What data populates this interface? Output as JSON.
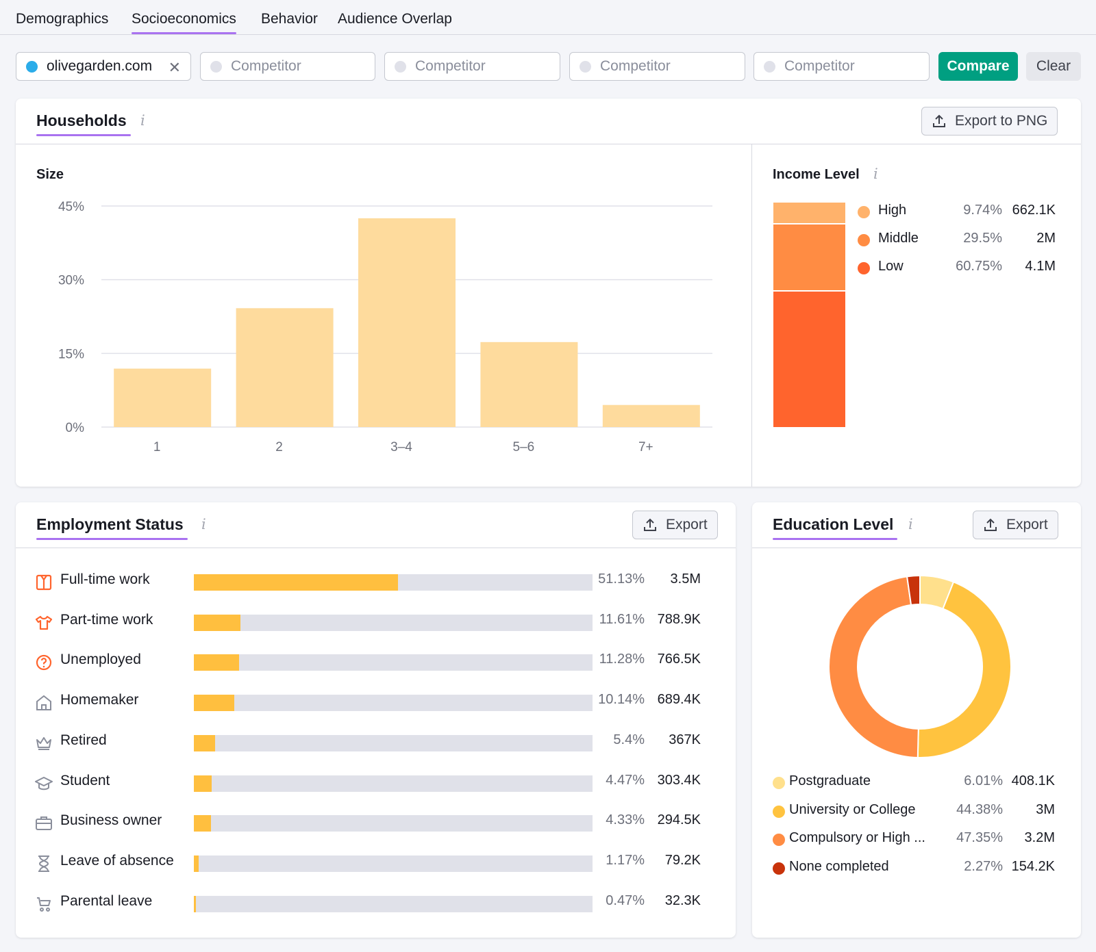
{
  "tabs": [
    {
      "label": "Demographics"
    },
    {
      "label": "Socioeconomics",
      "active": true
    },
    {
      "label": "Behavior"
    },
    {
      "label": "Audience Overlap"
    }
  ],
  "filters": {
    "domain": "olivegarden.com",
    "competitor_placeholder": "Competitor",
    "compare_label": "Compare",
    "clear_label": "Clear",
    "domain_dot_color": "#2bace9"
  },
  "households": {
    "title": "Households",
    "export_label": "Export to PNG",
    "size": {
      "title": "Size",
      "chart_data": {
        "type": "bar",
        "categories": [
          "1",
          "2",
          "3–4",
          "5–6",
          "7+"
        ],
        "values": [
          11.9,
          24.2,
          42.5,
          17.3,
          4.5
        ],
        "ylim": [
          0,
          45
        ],
        "yticks": [
          "45%",
          "30%",
          "15%",
          "0%"
        ],
        "ytick_values": [
          45,
          30,
          15,
          0
        ],
        "color": "#fedb9d"
      }
    },
    "income": {
      "title": "Income Level",
      "items": [
        {
          "label": "High",
          "pct": "9.74%",
          "value": "662.1K",
          "share": 9.74,
          "color": "#ffb26b"
        },
        {
          "label": "Middle",
          "pct": "29.5%",
          "value": "2M",
          "share": 29.5,
          "color": "#ff8c43"
        },
        {
          "label": "Low",
          "pct": "60.75%",
          "value": "4.1M",
          "share": 60.75,
          "color": "#ff642d"
        }
      ]
    }
  },
  "employment": {
    "title": "Employment Status",
    "export_label": "Export",
    "items": [
      {
        "label": "Full-time work",
        "pct": "51.13%",
        "value": "3.5M",
        "share": 51.13,
        "icon": "shirt-icon"
      },
      {
        "label": "Part-time work",
        "pct": "11.61%",
        "value": "788.9K",
        "share": 11.61,
        "icon": "tshirt-icon"
      },
      {
        "label": "Unemployed",
        "pct": "11.28%",
        "value": "766.5K",
        "share": 11.28,
        "icon": "question-circle-icon"
      },
      {
        "label": "Homemaker",
        "pct": "10.14%",
        "value": "689.4K",
        "share": 10.14,
        "icon": "home-icon"
      },
      {
        "label": "Retired",
        "pct": "5.4%",
        "value": "367K",
        "share": 5.4,
        "icon": "crown-icon"
      },
      {
        "label": "Student",
        "pct": "4.47%",
        "value": "303.4K",
        "share": 4.47,
        "icon": "graduation-cap-icon"
      },
      {
        "label": "Business owner",
        "pct": "4.33%",
        "value": "294.5K",
        "share": 4.33,
        "icon": "briefcase-icon"
      },
      {
        "label": "Leave of absence",
        "pct": "1.17%",
        "value": "79.2K",
        "share": 1.17,
        "icon": "hourglass-icon"
      },
      {
        "label": "Parental leave",
        "pct": "0.47%",
        "value": "32.3K",
        "share": 0.47,
        "icon": "stroller-icon"
      }
    ]
  },
  "education": {
    "title": "Education Level",
    "export_label": "Export",
    "chart_data": {
      "type": "pie",
      "items": [
        {
          "label": "Postgraduate",
          "pct": "6.01%",
          "value": "408.1K",
          "share": 6.01,
          "color": "#ffe08c"
        },
        {
          "label": "University or College",
          "pct": "44.38%",
          "value": "3M",
          "share": 44.38,
          "color": "#ffc33f"
        },
        {
          "label": "Compulsory or High ...",
          "pct": "47.35%",
          "value": "3.2M",
          "share": 47.35,
          "color": "#ff8c43"
        },
        {
          "label": "None completed",
          "pct": "2.27%",
          "value": "154.2K",
          "share": 2.27,
          "color": "#c8330b"
        }
      ]
    }
  }
}
